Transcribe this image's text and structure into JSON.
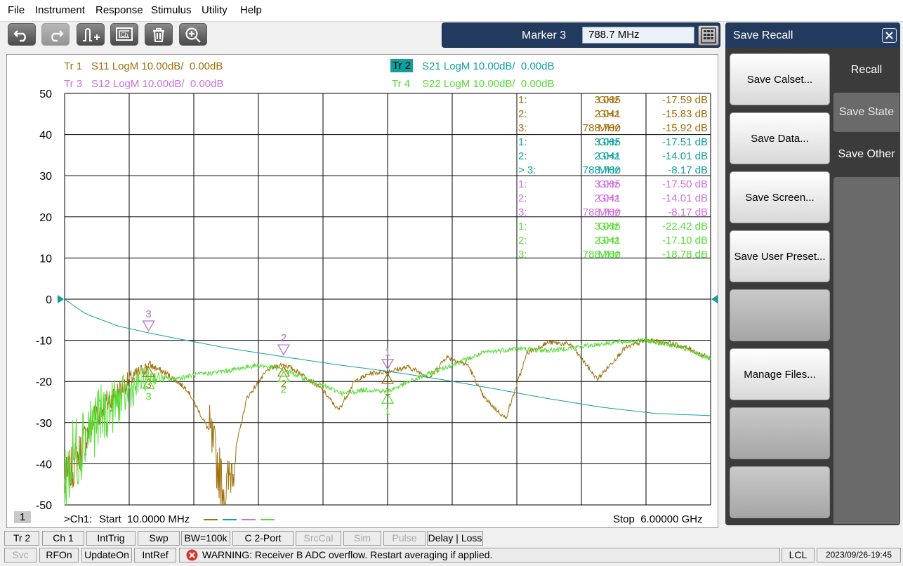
{
  "menu": [
    "File",
    "Instrument",
    "Response",
    "Stimulus",
    "Utility",
    "Help"
  ],
  "toolbar_icons": [
    "undo-icon",
    "redo-icon",
    "marker-add-icon",
    "channel-window-icon",
    "trash-icon",
    "zoom-in-icon"
  ],
  "marker": {
    "label": "Marker 3",
    "value": "788.7 MHz"
  },
  "traces": [
    {
      "id": "Tr 1",
      "desc": "S11 LogM 10.00dB/  0.00dB",
      "color": "#a0700a",
      "active": false
    },
    {
      "id": "Tr 2",
      "desc": "S21 LogM 10.00dB/  0.00dB",
      "color": "#10a0a0",
      "active": true
    },
    {
      "id": "Tr 3",
      "desc": "S12 LogM 10.00dB/  0.00dB",
      "color": "#d070e0",
      "active": false
    },
    {
      "id": "Tr 4",
      "desc": "S22 LogM 10.00dB/  0.00dB",
      "color": "#55dd33",
      "active": false
    }
  ],
  "marker_table": [
    {
      "color": "#a0700a",
      "rows": [
        [
          "1:",
          "3.005",
          "GHz",
          "-17.59 dB"
        ],
        [
          "2:",
          "2.041",
          "GHz",
          "-15.83 dB"
        ],
        [
          "3:",
          "788.700",
          "MHz",
          "-15.92 dB"
        ]
      ]
    },
    {
      "color": "#10a0a0",
      "rows": [
        [
          "1:",
          "3.005",
          "GHz",
          "-17.51 dB"
        ],
        [
          "2:",
          "2.041",
          "GHz",
          "-14.01 dB"
        ],
        [
          "> 3:",
          "788.700",
          "MHz",
          "-8.17 dB"
        ]
      ]
    },
    {
      "color": "#d070e0",
      "rows": [
        [
          "1:",
          "3.005",
          "GHz",
          "-17.50 dB"
        ],
        [
          "2:",
          "2.041",
          "GHz",
          "-14.01 dB"
        ],
        [
          "3:",
          "788.700",
          "MHz",
          "-8.17 dB"
        ]
      ]
    },
    {
      "color": "#55dd33",
      "rows": [
        [
          "1:",
          "3.005",
          "GHz",
          "-22.42 dB"
        ],
        [
          "2:",
          "2.041",
          "GHz",
          "-17.10 dB"
        ],
        [
          "3:",
          "788.700",
          "MHz",
          "-18.78 dB"
        ]
      ]
    }
  ],
  "chart_data": {
    "type": "line",
    "ylim": [
      -50,
      50
    ],
    "y_ticks": [
      "50",
      "40",
      "30",
      "20",
      "10",
      "0",
      "-10",
      "-20",
      "-30",
      "-40",
      "-50"
    ],
    "x_start_label": "Start  10.0000 MHz",
    "x_stop_label": "Stop  6.00000 GHz",
    "channel_prefix": ">Ch1:",
    "window_number": "1",
    "grid": true,
    "reference_level": 0,
    "series": [
      {
        "name": "S11",
        "color": "#a0700a",
        "x": [
          0.01,
          0.1,
          0.3,
          0.6,
          0.79,
          0.95,
          1.15,
          1.35,
          1.5,
          1.7,
          1.9,
          2.04,
          2.2,
          2.4,
          2.55,
          2.7,
          2.85,
          3.0,
          3.2,
          3.4,
          3.55,
          3.75,
          3.9,
          4.1,
          4.3,
          4.5,
          4.7,
          4.95,
          5.2,
          5.4,
          5.6,
          5.8,
          6.0
        ],
        "values": [
          -45,
          -40,
          -28,
          -20,
          -15.9,
          -18,
          -22,
          -32,
          -48,
          -24,
          -17,
          -15.8,
          -18,
          -22,
          -27,
          -20,
          -18,
          -17.6,
          -16.5,
          -19,
          -14,
          -16,
          -24,
          -29,
          -13,
          -10.5,
          -11,
          -19.5,
          -12,
          -10,
          -10.5,
          -12,
          -14.5
        ]
      },
      {
        "name": "S21",
        "color": "#10a0a0",
        "x": [
          0.01,
          0.2,
          0.5,
          0.79,
          1.0,
          1.5,
          2.04,
          2.5,
          3.0,
          3.5,
          4.0,
          4.5,
          5.0,
          5.5,
          6.0
        ],
        "values": [
          0,
          -3.5,
          -6.5,
          -8.2,
          -9.3,
          -11.8,
          -14,
          -15.8,
          -17.5,
          -19.5,
          -21.8,
          -24.2,
          -26.3,
          -27.8,
          -28.3
        ]
      },
      {
        "name": "S12",
        "color": "#d070e0",
        "x": [
          0.79,
          2.04,
          3.005
        ],
        "values": [
          -8.2,
          -14,
          -17.5
        ]
      },
      {
        "name": "S22",
        "color": "#55dd33",
        "x": [
          0.01,
          0.2,
          0.5,
          0.79,
          1.0,
          1.2,
          1.5,
          1.8,
          2.04,
          2.3,
          2.6,
          2.8,
          3.005,
          3.3,
          3.6,
          3.9,
          4.2,
          4.5,
          4.8,
          5.1,
          5.4,
          5.7,
          6.0
        ],
        "values": [
          -44,
          -32,
          -25,
          -18.8,
          -19.5,
          -18.5,
          -17.5,
          -16,
          -17.1,
          -20,
          -23,
          -22,
          -22.4,
          -19,
          -16,
          -13,
          -12,
          -12.5,
          -11.5,
          -10.5,
          -10,
          -11.5,
          -14.5
        ]
      }
    ],
    "markers": [
      {
        "label": "1",
        "x": 3.005
      },
      {
        "label": "2",
        "x": 2.041
      },
      {
        "label": "3",
        "x": 0.7887
      }
    ]
  },
  "side_panel": {
    "title": "Save Recall",
    "buttons": [
      "Save Calset...",
      "Save Data...",
      "Save Screen...",
      "Save User Preset...",
      "",
      "Manage Files...",
      "",
      ""
    ],
    "tabs": [
      "Recall",
      "Save State",
      "Save Other"
    ]
  },
  "status_row1": [
    {
      "label": "Tr 2",
      "enabled": true
    },
    {
      "label": "Ch 1",
      "enabled": true
    },
    {
      "label": "IntTrig",
      "enabled": true
    },
    {
      "label": "Swp",
      "enabled": true
    },
    {
      "label": "BW=100k",
      "enabled": true
    },
    {
      "label": "C  2-Port",
      "enabled": true
    },
    {
      "label": "SrcCal",
      "enabled": false
    },
    {
      "label": "Sim",
      "enabled": false
    },
    {
      "label": "Pulse",
      "enabled": false
    },
    {
      "label": "Delay | Loss",
      "enabled": true
    }
  ],
  "status_row2": [
    {
      "label": "Svc",
      "enabled": false
    },
    {
      "label": "RFOn",
      "enabled": true
    },
    {
      "label": "UpdateOn",
      "enabled": true
    },
    {
      "label": "IntRef",
      "enabled": true
    }
  ],
  "warning": "WARNING: Receiver B ADC overflow. Restart averaging if applied.",
  "lcl": "LCL",
  "datetime": "2023/09/26-19:45"
}
